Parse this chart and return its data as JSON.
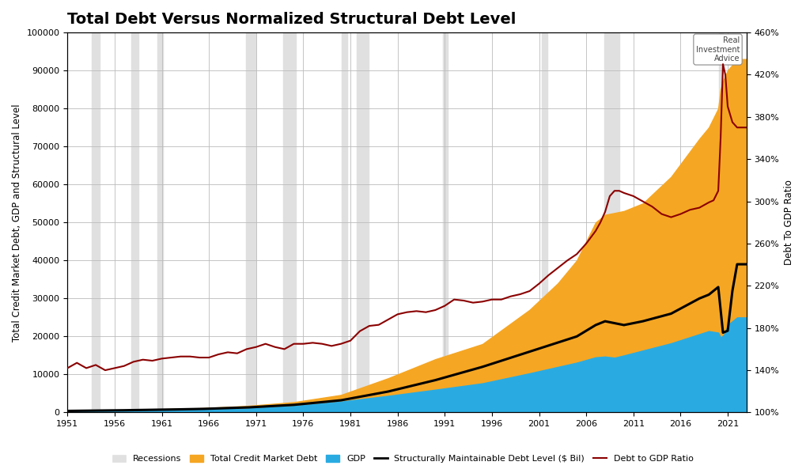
{
  "title": "Total Debt Versus Normalized Structural Debt Level",
  "ylabel_left": "Total Credit Market Debt, GDP and Structural Level",
  "ylabel_right": "Debt To GDP Ratio",
  "xlim": [
    1951,
    2023
  ],
  "ylim_left": [
    0,
    100000
  ],
  "ylim_right": [
    100,
    460
  ],
  "yticks_left": [
    0,
    10000,
    20000,
    30000,
    40000,
    50000,
    60000,
    70000,
    80000,
    90000,
    100000
  ],
  "yticks_right": [
    100,
    140,
    180,
    220,
    260,
    300,
    340,
    380,
    420,
    460
  ],
  "xticks": [
    1951,
    1956,
    1961,
    1966,
    1971,
    1976,
    1981,
    1986,
    1991,
    1996,
    2001,
    2006,
    2011,
    2016,
    2021
  ],
  "recession_periods": [
    [
      1953.6,
      1954.4
    ],
    [
      1957.8,
      1958.5
    ],
    [
      1960.5,
      1961.1
    ],
    [
      1969.9,
      1970.9
    ],
    [
      1973.9,
      1975.2
    ],
    [
      1980.1,
      1980.7
    ],
    [
      1981.7,
      1982.9
    ],
    [
      1990.8,
      1991.3
    ],
    [
      2001.3,
      2001.9
    ],
    [
      2007.9,
      2009.5
    ],
    [
      2020.1,
      2020.5
    ]
  ],
  "orange_color": "#F5A623",
  "blue_color": "#29ABE2",
  "black_line_color": "#000000",
  "red_line_color": "#8B0000",
  "recession_color": "#E0E0E0",
  "background_color": "#FFFFFF",
  "grid_color": "#BBBBBB",
  "title_fontsize": 14,
  "axis_label_fontsize": 8.5,
  "tick_fontsize": 8,
  "legend_fontsize": 8,
  "watermark_text": "Real\nInvestment\nAdvice"
}
